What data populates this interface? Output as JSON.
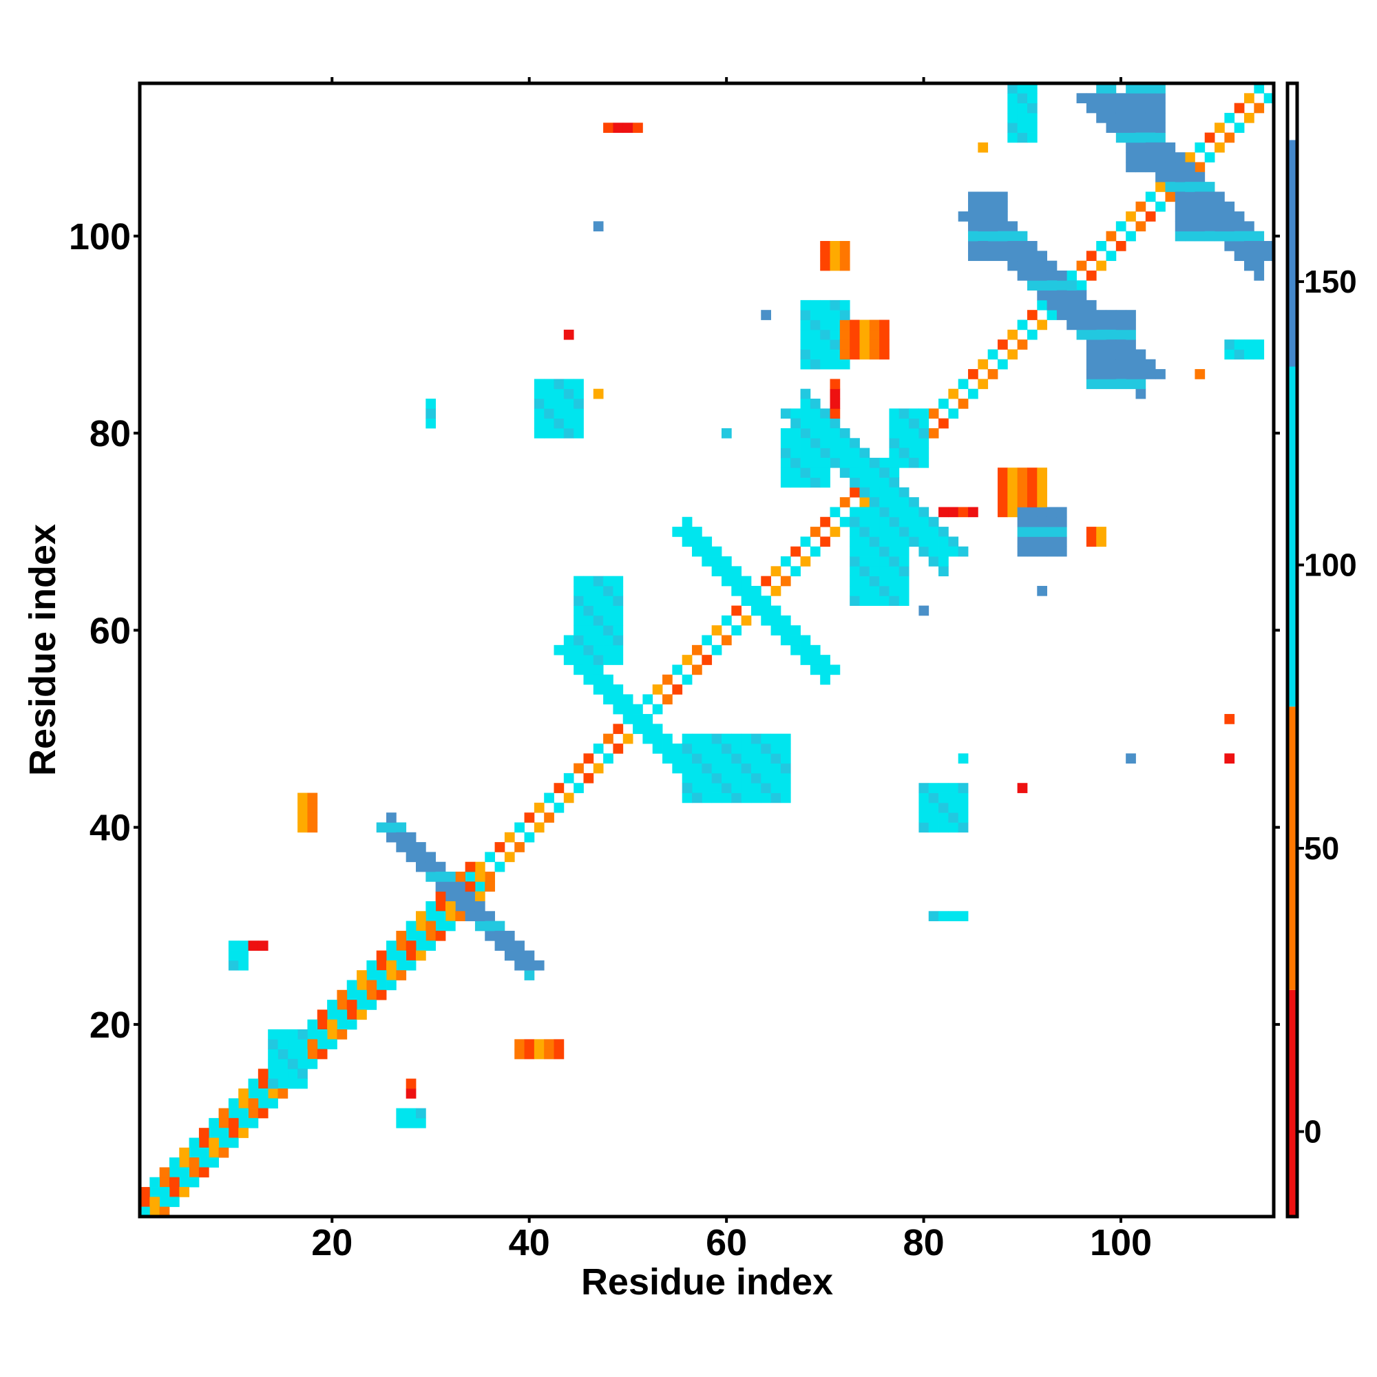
{
  "chart_data": {
    "type": "heatmap",
    "title": "",
    "xlabel": "Residue index",
    "ylabel": "Residue index",
    "xlim": [
      1,
      115
    ],
    "ylim": [
      1,
      115
    ],
    "x_ticks": [
      20,
      40,
      60,
      80,
      100
    ],
    "y_ticks": [
      20,
      40,
      60,
      80,
      100
    ],
    "grid": false,
    "colorbar": {
      "range": [
        -15,
        185
      ],
      "ticks": [
        0,
        50,
        100,
        150
      ],
      "bands": [
        {
          "from": -15,
          "to": 25,
          "color": "#ee1111"
        },
        {
          "from": 25,
          "to": 75,
          "color": "#ff7700"
        },
        {
          "from": 75,
          "to": 135,
          "color": "#00ddee"
        },
        {
          "from": 135,
          "to": 175,
          "color": "#4488cc"
        },
        {
          "from": 175,
          "to": 185,
          "color": "#ffffff"
        }
      ]
    },
    "colors": {
      "red": "#ee1111",
      "orange_red": "#ff4400",
      "orange": "#ff7700",
      "amber": "#ffaa00",
      "cyan": "#00e5ee",
      "light_blue": "#22c8e0",
      "steel_blue": "#4a90c8"
    },
    "features": [
      {
        "kind": "band",
        "from": [
          1,
          1
        ],
        "to": [
          115,
          115
        ],
        "width": 3,
        "value_sequence": [
          40,
          120,
          45,
          110,
          60,
          30,
          115,
          50
        ]
      },
      {
        "kind": "band",
        "from": [
          1,
          2
        ],
        "to": [
          34,
          35
        ],
        "width": 2,
        "value_sequence": [
          55,
          110,
          40,
          105
        ]
      },
      {
        "kind": "band",
        "from": [
          2,
          1
        ],
        "to": [
          35,
          34
        ],
        "width": 2,
        "value_sequence": [
          50,
          115,
          45,
          100
        ]
      },
      {
        "kind": "antiband",
        "from": [
          26,
          40
        ],
        "to": [
          40,
          26
        ],
        "width": 3,
        "value": 140
      },
      {
        "kind": "antiband",
        "from": [
          44,
          58
        ],
        "to": [
          58,
          44
        ],
        "width": 3,
        "value": 120
      },
      {
        "kind": "antiband",
        "from": [
          56,
          70
        ],
        "to": [
          70,
          56
        ],
        "width": 3,
        "value": 110
      },
      {
        "kind": "antiband",
        "from": [
          68,
          82
        ],
        "to": [
          82,
          68
        ],
        "width": 4,
        "value": 125
      },
      {
        "kind": "antiband",
        "from": [
          86,
          102
        ],
        "to": [
          102,
          86
        ],
        "width": 4,
        "value": 150
      },
      {
        "kind": "antiband",
        "from": [
          98,
          114
        ],
        "to": [
          114,
          98
        ],
        "width": 4,
        "value": 150
      },
      {
        "kind": "block",
        "x": [
          10,
          11
        ],
        "y": [
          26,
          28
        ],
        "value": 110
      },
      {
        "kind": "block",
        "x": [
          12,
          13
        ],
        "y": [
          28,
          28
        ],
        "value": 20
      },
      {
        "kind": "block",
        "x": [
          14,
          17
        ],
        "y": [
          14,
          19
        ],
        "value": 130
      },
      {
        "kind": "block",
        "x": [
          17,
          18
        ],
        "y": [
          40,
          43
        ],
        "value": 65
      },
      {
        "kind": "block",
        "x": [
          27,
          29
        ],
        "y": [
          10,
          11
        ],
        "value": 110
      },
      {
        "kind": "block",
        "x": [
          28,
          28
        ],
        "y": [
          13,
          14
        ],
        "value": 10
      },
      {
        "kind": "block",
        "x": [
          30,
          30
        ],
        "y": [
          81,
          83
        ],
        "value": 95
      },
      {
        "kind": "block",
        "x": [
          39,
          43
        ],
        "y": [
          17,
          18
        ],
        "value": 60
      },
      {
        "kind": "block",
        "x": [
          41,
          45
        ],
        "y": [
          80,
          85
        ],
        "value": 115
      },
      {
        "kind": "block",
        "x": [
          45,
          49
        ],
        "y": [
          57,
          65
        ],
        "value": 125
      },
      {
        "kind": "block",
        "x": [
          48,
          51
        ],
        "y": [
          111,
          111
        ],
        "value": 10
      },
      {
        "kind": "block",
        "x": [
          56,
          66
        ],
        "y": [
          43,
          49
        ],
        "value": 120
      },
      {
        "kind": "block",
        "x": [
          66,
          70
        ],
        "y": [
          75,
          80
        ],
        "value": 120
      },
      {
        "kind": "block",
        "x": [
          68,
          72
        ],
        "y": [
          87,
          93
        ],
        "value": 130
      },
      {
        "kind": "block",
        "x": [
          72,
          76
        ],
        "y": [
          88,
          91
        ],
        "value": 60
      },
      {
        "kind": "block",
        "x": [
          70,
          72
        ],
        "y": [
          97,
          99
        ],
        "value": 45
      },
      {
        "kind": "block",
        "x": [
          71,
          71
        ],
        "y": [
          82,
          85
        ],
        "value": 20
      },
      {
        "kind": "block",
        "x": [
          73,
          78
        ],
        "y": [
          63,
          72
        ],
        "value": 105
      },
      {
        "kind": "block",
        "x": [
          77,
          80
        ],
        "y": [
          77,
          82
        ],
        "value": 115
      },
      {
        "kind": "block",
        "x": [
          80,
          84
        ],
        "y": [
          40,
          44
        ],
        "value": 115
      },
      {
        "kind": "block",
        "x": [
          81,
          84
        ],
        "y": [
          31,
          31
        ],
        "value": 110
      },
      {
        "kind": "block",
        "x": [
          82,
          85
        ],
        "y": [
          72,
          72
        ],
        "value": 20
      },
      {
        "kind": "block",
        "x": [
          85,
          88
        ],
        "y": [
          98,
          104
        ],
        "value": 145
      },
      {
        "kind": "block",
        "x": [
          88,
          92
        ],
        "y": [
          72,
          76
        ],
        "value": 55
      },
      {
        "kind": "block",
        "x": [
          90,
          94
        ],
        "y": [
          68,
          72
        ],
        "value": 145
      },
      {
        "kind": "block",
        "x": [
          89,
          91
        ],
        "y": [
          110,
          115
        ],
        "value": 90
      },
      {
        "kind": "block",
        "x": [
          97,
          101
        ],
        "y": [
          85,
          92
        ],
        "value": 145
      },
      {
        "kind": "block",
        "x": [
          97,
          98
        ],
        "y": [
          69,
          70
        ],
        "value": 40
      },
      {
        "kind": "block",
        "x": [
          101,
          104
        ],
        "y": [
          107,
          115
        ],
        "value": 145
      },
      {
        "kind": "block",
        "x": [
          106,
          110
        ],
        "y": [
          100,
          104
        ],
        "value": 150
      },
      {
        "kind": "block",
        "x": [
          111,
          114
        ],
        "y": [
          88,
          89
        ],
        "value": 85
      },
      {
        "kind": "point",
        "x": [
          44,
          44
        ],
        "y": [
          90,
          90
        ],
        "value": 10
      },
      {
        "kind": "point",
        "x": [
          47,
          47
        ],
        "y": [
          84,
          84
        ],
        "value": 70
      },
      {
        "kind": "point",
        "x": [
          47,
          47
        ],
        "y": [
          101,
          101
        ],
        "value": 145
      },
      {
        "kind": "point",
        "x": [
          64,
          64
        ],
        "y": [
          92,
          92
        ],
        "value": 135
      },
      {
        "kind": "point",
        "x": [
          60,
          60
        ],
        "y": [
          80,
          80
        ],
        "value": 140
      },
      {
        "kind": "point",
        "x": [
          80,
          80
        ],
        "y": [
          62,
          62
        ],
        "value": 135
      },
      {
        "kind": "point",
        "x": [
          84,
          84
        ],
        "y": [
          47,
          47
        ],
        "value": 80
      },
      {
        "kind": "point",
        "x": [
          86,
          86
        ],
        "y": [
          109,
          109
        ],
        "value": 55
      },
      {
        "kind": "point",
        "x": [
          90,
          90
        ],
        "y": [
          44,
          44
        ],
        "value": 10
      },
      {
        "kind": "point",
        "x": [
          92,
          92
        ],
        "y": [
          64,
          64
        ],
        "value": 140
      },
      {
        "kind": "point",
        "x": [
          101,
          101
        ],
        "y": [
          47,
          47
        ],
        "value": 145
      },
      {
        "kind": "point",
        "x": [
          108,
          108
        ],
        "y": [
          86,
          86
        ],
        "value": 40
      },
      {
        "kind": "point",
        "x": [
          111,
          111
        ],
        "y": [
          51,
          51
        ],
        "value": 10
      },
      {
        "kind": "point",
        "x": [
          111,
          111
        ],
        "y": [
          47,
          47
        ],
        "value": 10
      }
    ]
  }
}
